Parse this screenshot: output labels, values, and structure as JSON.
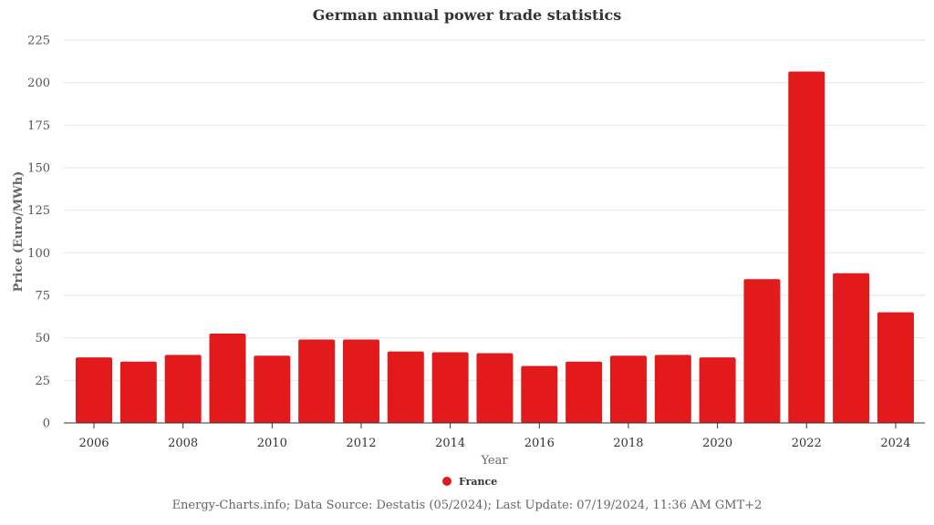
{
  "chart_data": {
    "type": "bar",
    "title": "German annual power trade statistics",
    "xlabel": "Year",
    "ylabel": "Price (Euro/MWh)",
    "ylim": [
      0,
      225
    ],
    "yticks": [
      0,
      25,
      50,
      75,
      100,
      125,
      150,
      175,
      200,
      225
    ],
    "xtick_labels": [
      "2006",
      "2008",
      "2010",
      "2012",
      "2014",
      "2016",
      "2018",
      "2020",
      "2022",
      "2024"
    ],
    "categories": [
      "2006",
      "2007",
      "2008",
      "2009",
      "2010",
      "2011",
      "2012",
      "2013",
      "2014",
      "2015",
      "2016",
      "2017",
      "2018",
      "2019",
      "2020",
      "2021",
      "2022",
      "2023",
      "2024"
    ],
    "series": [
      {
        "name": "France",
        "color": "#e31a1c",
        "values": [
          38.5,
          36,
          40,
          52.5,
          39.5,
          49,
          49,
          42,
          41.5,
          41,
          33.5,
          36,
          39.5,
          40,
          38.5,
          84.5,
          206.5,
          88,
          65
        ]
      }
    ],
    "grid": true,
    "legend_position": "bottom-center",
    "source": "Energy-Charts.info; Data Source: Destatis (05/2024); Last Update: 07/19/2024, 11:36 AM GMT+2"
  }
}
